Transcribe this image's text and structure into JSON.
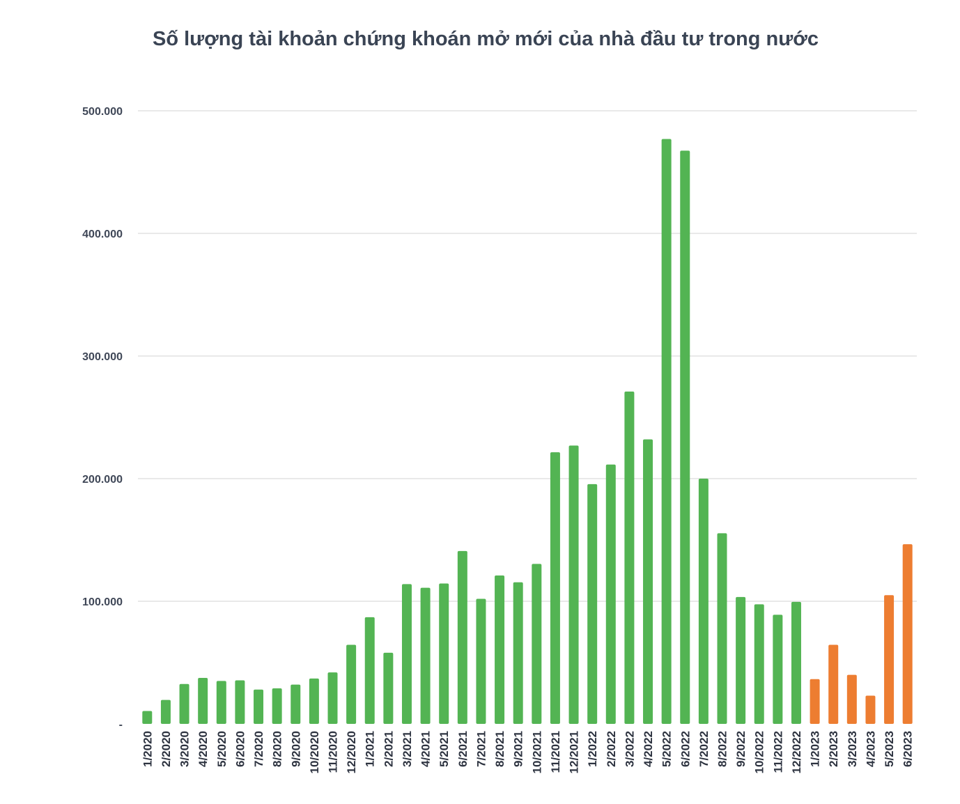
{
  "chart_data": {
    "type": "bar",
    "title": "Số lượng tài khoản chứng khoán mở mới của nhà đầu tư trong nước",
    "xlabel": "",
    "ylabel": "",
    "ylim": [
      0,
      500000
    ],
    "grid": true,
    "y_ticks": [
      {
        "value": 0,
        "label": "-"
      },
      {
        "value": 100000,
        "label": "100.000"
      },
      {
        "value": 200000,
        "label": "200.000"
      },
      {
        "value": 300000,
        "label": "300.000"
      },
      {
        "value": 400000,
        "label": "400.000"
      },
      {
        "value": 500000,
        "label": "500.000"
      }
    ],
    "categories": [
      "1/2020",
      "2/2020",
      "3/2020",
      "4/2020",
      "5/2020",
      "6/2020",
      "7/2020",
      "8/2020",
      "9/2020",
      "10/2020",
      "11/2020",
      "12/2020",
      "1/2021",
      "2/2021",
      "3/2021",
      "4/2021",
      "5/2021",
      "6/2021",
      "7/2021",
      "8/2021",
      "9/2021",
      "10/2021",
      "11/2021",
      "12/2021",
      "1/2022",
      "2/2022",
      "3/2022",
      "4/2022",
      "5/2022",
      "6/2022",
      "7/2022",
      "8/2022",
      "9/2022",
      "10/2022",
      "11/2022",
      "12/2022",
      "1/2023",
      "2/2023",
      "3/2023",
      "4/2023",
      "5/2023",
      "6/2023"
    ],
    "values": [
      10500,
      19500,
      32500,
      37500,
      35000,
      35500,
      28000,
      29000,
      32000,
      37000,
      42000,
      64500,
      87000,
      58000,
      114000,
      111000,
      114500,
      141000,
      102000,
      121000,
      115500,
      130500,
      221500,
      227000,
      195500,
      211500,
      271000,
      232000,
      477000,
      467500,
      200000,
      155500,
      103500,
      97500,
      89000,
      99500,
      36500,
      64500,
      40000,
      23000,
      105000,
      146500
    ],
    "colors": [
      "#53b453",
      "#53b453",
      "#53b453",
      "#53b453",
      "#53b453",
      "#53b453",
      "#53b453",
      "#53b453",
      "#53b453",
      "#53b453",
      "#53b453",
      "#53b453",
      "#53b453",
      "#53b453",
      "#53b453",
      "#53b453",
      "#53b453",
      "#53b453",
      "#53b453",
      "#53b453",
      "#53b453",
      "#53b453",
      "#53b453",
      "#53b453",
      "#53b453",
      "#53b453",
      "#53b453",
      "#53b453",
      "#53b453",
      "#53b453",
      "#53b453",
      "#53b453",
      "#53b453",
      "#53b453",
      "#53b453",
      "#53b453",
      "#ed7d31",
      "#ed7d31",
      "#ed7d31",
      "#ed7d31",
      "#ed7d31",
      "#ed7d31"
    ],
    "gridline_color": "#dcdcdc"
  }
}
